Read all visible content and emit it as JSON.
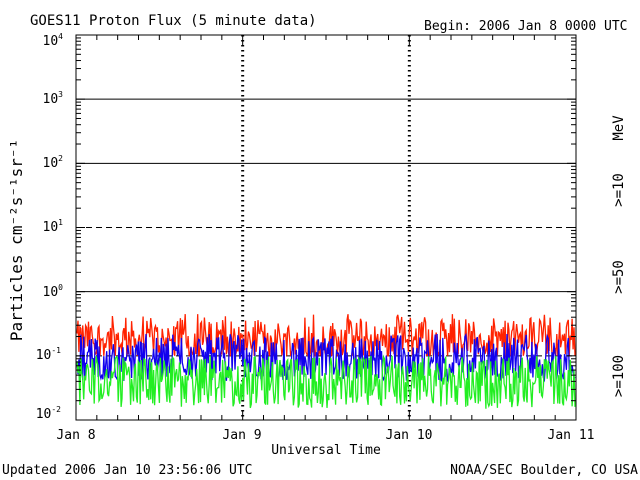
{
  "header": {
    "title": "GOES11 Proton Flux (5 minute data)",
    "begin": "Begin: 2006 Jan 8 0000 UTC"
  },
  "footer": {
    "updated": "Updated 2006 Jan 10 23:56:06 UTC",
    "credit": "NOAA/SEC Boulder, CO USA"
  },
  "colors": {
    "ge10": "#ff2200",
    "ge50": "#1100ee",
    "ge100": "#22ee22"
  },
  "chart_data": {
    "type": "line",
    "title": "GOES11 Proton Flux (5 minute data)",
    "xlabel": "Universal Time",
    "ylabel": "Particles cm⁻²s⁻¹sr⁻¹",
    "yscale": "log",
    "ylim": [
      0.01,
      10000
    ],
    "xlim": [
      "Jan 8",
      "Jan 11"
    ],
    "x_ticks": [
      "Jan 8",
      "Jan 9",
      "Jan 10",
      "Jan 11"
    ],
    "y_ticks": [
      {
        "base": "10",
        "exp": "-2"
      },
      {
        "base": "10",
        "exp": "-1"
      },
      {
        "base": "10",
        "exp": "0"
      },
      {
        "base": "10",
        "exp": "1"
      },
      {
        "base": "10",
        "exp": "2"
      },
      {
        "base": "10",
        "exp": "3"
      },
      {
        "base": "10",
        "exp": "4"
      }
    ],
    "right_labels": {
      "unit": "MeV",
      "ge10": ">=10",
      "ge50": ">=50",
      "ge100": ">=100"
    },
    "series": [
      {
        "name": ">=10",
        "color": "#ff2200",
        "typical": 0.18,
        "min": 0.1,
        "max": 0.45
      },
      {
        "name": ">=50",
        "color": "#1100ee",
        "typical": 0.09,
        "min": 0.04,
        "max": 0.22
      },
      {
        "name": ">=100",
        "color": "#22ee22",
        "typical": 0.04,
        "min": 0.015,
        "max": 0.1
      }
    ],
    "grid": "solid horizontal lines at 10^0, 10^2, 10^3; dashed at 10^-1, 10^1; dashed vertical day markers"
  }
}
